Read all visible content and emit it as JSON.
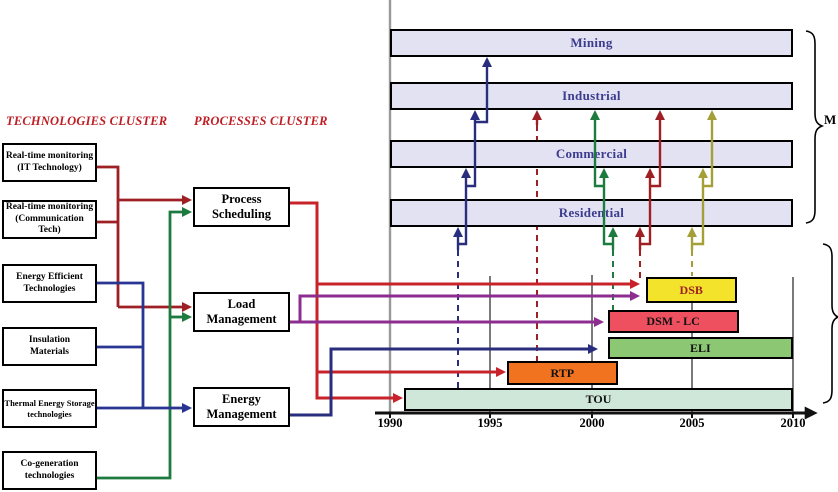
{
  "titles": {
    "technologies_cluster": "TECHNOLOGIES CLUSTER",
    "processes_cluster": "PROCESSES CLUSTER"
  },
  "technologies": [
    {
      "line1": "Real-time monitoring",
      "line2": "(IT Technology)"
    },
    {
      "line1": "Real-time monitoring",
      "line2": "(Communication Tech)"
    },
    {
      "line1": "Energy Efficient",
      "line2": "Technologies"
    },
    {
      "line1": "Insulation",
      "line2": "Materials"
    },
    {
      "line1": "Thermal Energy Storage",
      "line2": "technologies"
    },
    {
      "line1": "Co-generation",
      "line2": "technologies"
    }
  ],
  "processes": [
    {
      "line1": "Process",
      "line2": "Scheduling"
    },
    {
      "line1": "Load",
      "line2": "Management"
    },
    {
      "line1": "Energy",
      "line2": "Management"
    }
  ],
  "markets": [
    "Mining",
    "Industrial",
    "Commercial",
    "Residential"
  ],
  "markets_brace_label": "M",
  "programs": [
    {
      "id": "dsb",
      "label": "DSB",
      "start_year": 2002.7,
      "end_year": 2007.2,
      "fill": "#f3e32b",
      "text_color": "#9e2025"
    },
    {
      "id": "dsm-lc",
      "label": "DSM - LC",
      "start_year": 2000.8,
      "end_year": 2007.3,
      "fill": "#ee5060",
      "text_color": "#111111"
    },
    {
      "id": "eli",
      "label": "ELI",
      "start_year": 2000.8,
      "end_year": 2010,
      "fill": "#8cc873",
      "text_color": "#111111"
    },
    {
      "id": "rtp",
      "label": "RTP",
      "start_year": 1995.8,
      "end_year": 2001.3,
      "fill": "#f2731f",
      "text_color": "#111111"
    },
    {
      "id": "tou",
      "label": "TOU",
      "start_year": 1990.7,
      "end_year": 2010,
      "fill": "#cfe7d8",
      "text_color": "#111111"
    }
  ],
  "timeline": {
    "years": [
      "1990",
      "1995",
      "2000",
      "2005",
      "2010"
    ],
    "start": 1990,
    "end": 2010
  },
  "colors": {
    "market_bar_fill": "#e3e2f2",
    "market_text": "#3c3c8f",
    "title_red": "#bf1e24",
    "line_red": "#c8232a",
    "line_dark_red": "#9e2025",
    "line_purple": "#8e2d90",
    "line_navy": "#282e7d",
    "line_blue": "#283593",
    "line_green": "#1e7b40",
    "line_olive": "#a49f37",
    "gridline_gray": "#999999"
  }
}
